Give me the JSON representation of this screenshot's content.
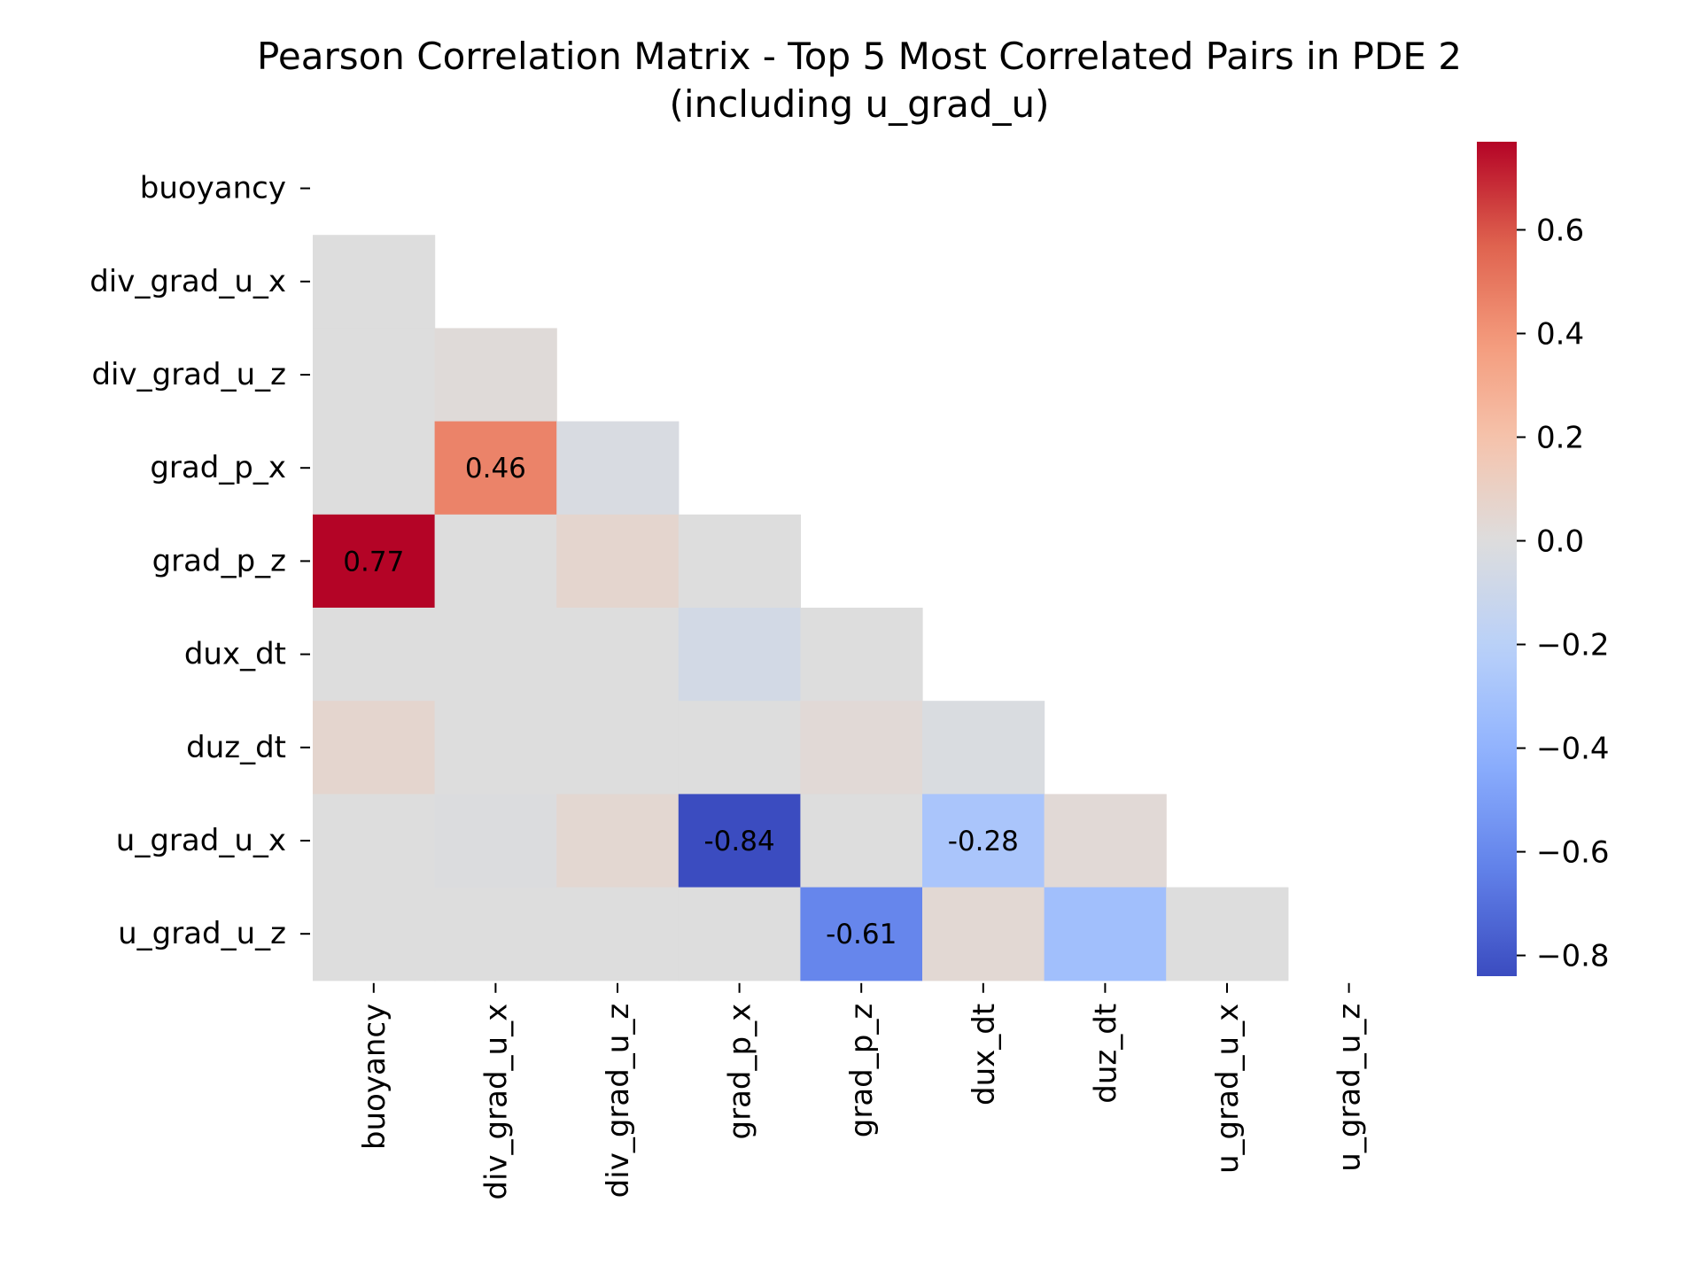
{
  "chart_data": {
    "type": "heatmap",
    "title": "Pearson Correlation Matrix - Top 5 Most Correlated Pairs in PDE 2",
    "subtitle": "(including u_grad_u)",
    "variables": [
      "buoyancy",
      "div_grad_u_x",
      "div_grad_u_z",
      "grad_p_x",
      "grad_p_z",
      "dux_dt",
      "duz_dt",
      "u_grad_u_x",
      "u_grad_u_z"
    ],
    "mask": "upper-triangle-including-diagonal",
    "matrix": [
      [
        null,
        null,
        null,
        null,
        null,
        null,
        null,
        null,
        null
      ],
      [
        0.0,
        null,
        null,
        null,
        null,
        null,
        null,
        null,
        null
      ],
      [
        0.0,
        0.02,
        null,
        null,
        null,
        null,
        null,
        null,
        null
      ],
      [
        0.0,
        0.46,
        -0.03,
        null,
        null,
        null,
        null,
        null,
        null
      ],
      [
        0.77,
        0.0,
        0.06,
        0.0,
        null,
        null,
        null,
        null,
        null
      ],
      [
        0.0,
        0.0,
        0.0,
        -0.06,
        0.0,
        null,
        null,
        null,
        null
      ],
      [
        0.06,
        0.0,
        0.0,
        0.0,
        0.03,
        -0.02,
        null,
        null,
        null
      ],
      [
        0.0,
        -0.01,
        0.05,
        -0.84,
        0.0,
        -0.28,
        0.03,
        null,
        null
      ],
      [
        0.0,
        0.0,
        0.0,
        0.0,
        -0.61,
        0.04,
        -0.32,
        0.0,
        null
      ]
    ],
    "annotations": [
      {
        "row": 3,
        "col": 1,
        "text": "0.46"
      },
      {
        "row": 4,
        "col": 0,
        "text": "0.77"
      },
      {
        "row": 7,
        "col": 3,
        "text": "-0.84"
      },
      {
        "row": 7,
        "col": 5,
        "text": "-0.28"
      },
      {
        "row": 8,
        "col": 4,
        "text": "-0.61"
      }
    ],
    "colormap": "coolwarm",
    "colorbar": {
      "range": [
        -0.84,
        0.77
      ],
      "ticks": [
        0.6,
        0.4,
        0.2,
        0.0,
        -0.2,
        -0.4,
        -0.6,
        -0.8
      ],
      "tick_labels": [
        "0.6",
        "0.4",
        "0.2",
        "0.0",
        "−0.2",
        "−0.4",
        "−0.6",
        "−0.8"
      ]
    },
    "colors": {
      "low": "#3b4cc0",
      "mid": "#dddddd",
      "high": "#b40426"
    }
  }
}
